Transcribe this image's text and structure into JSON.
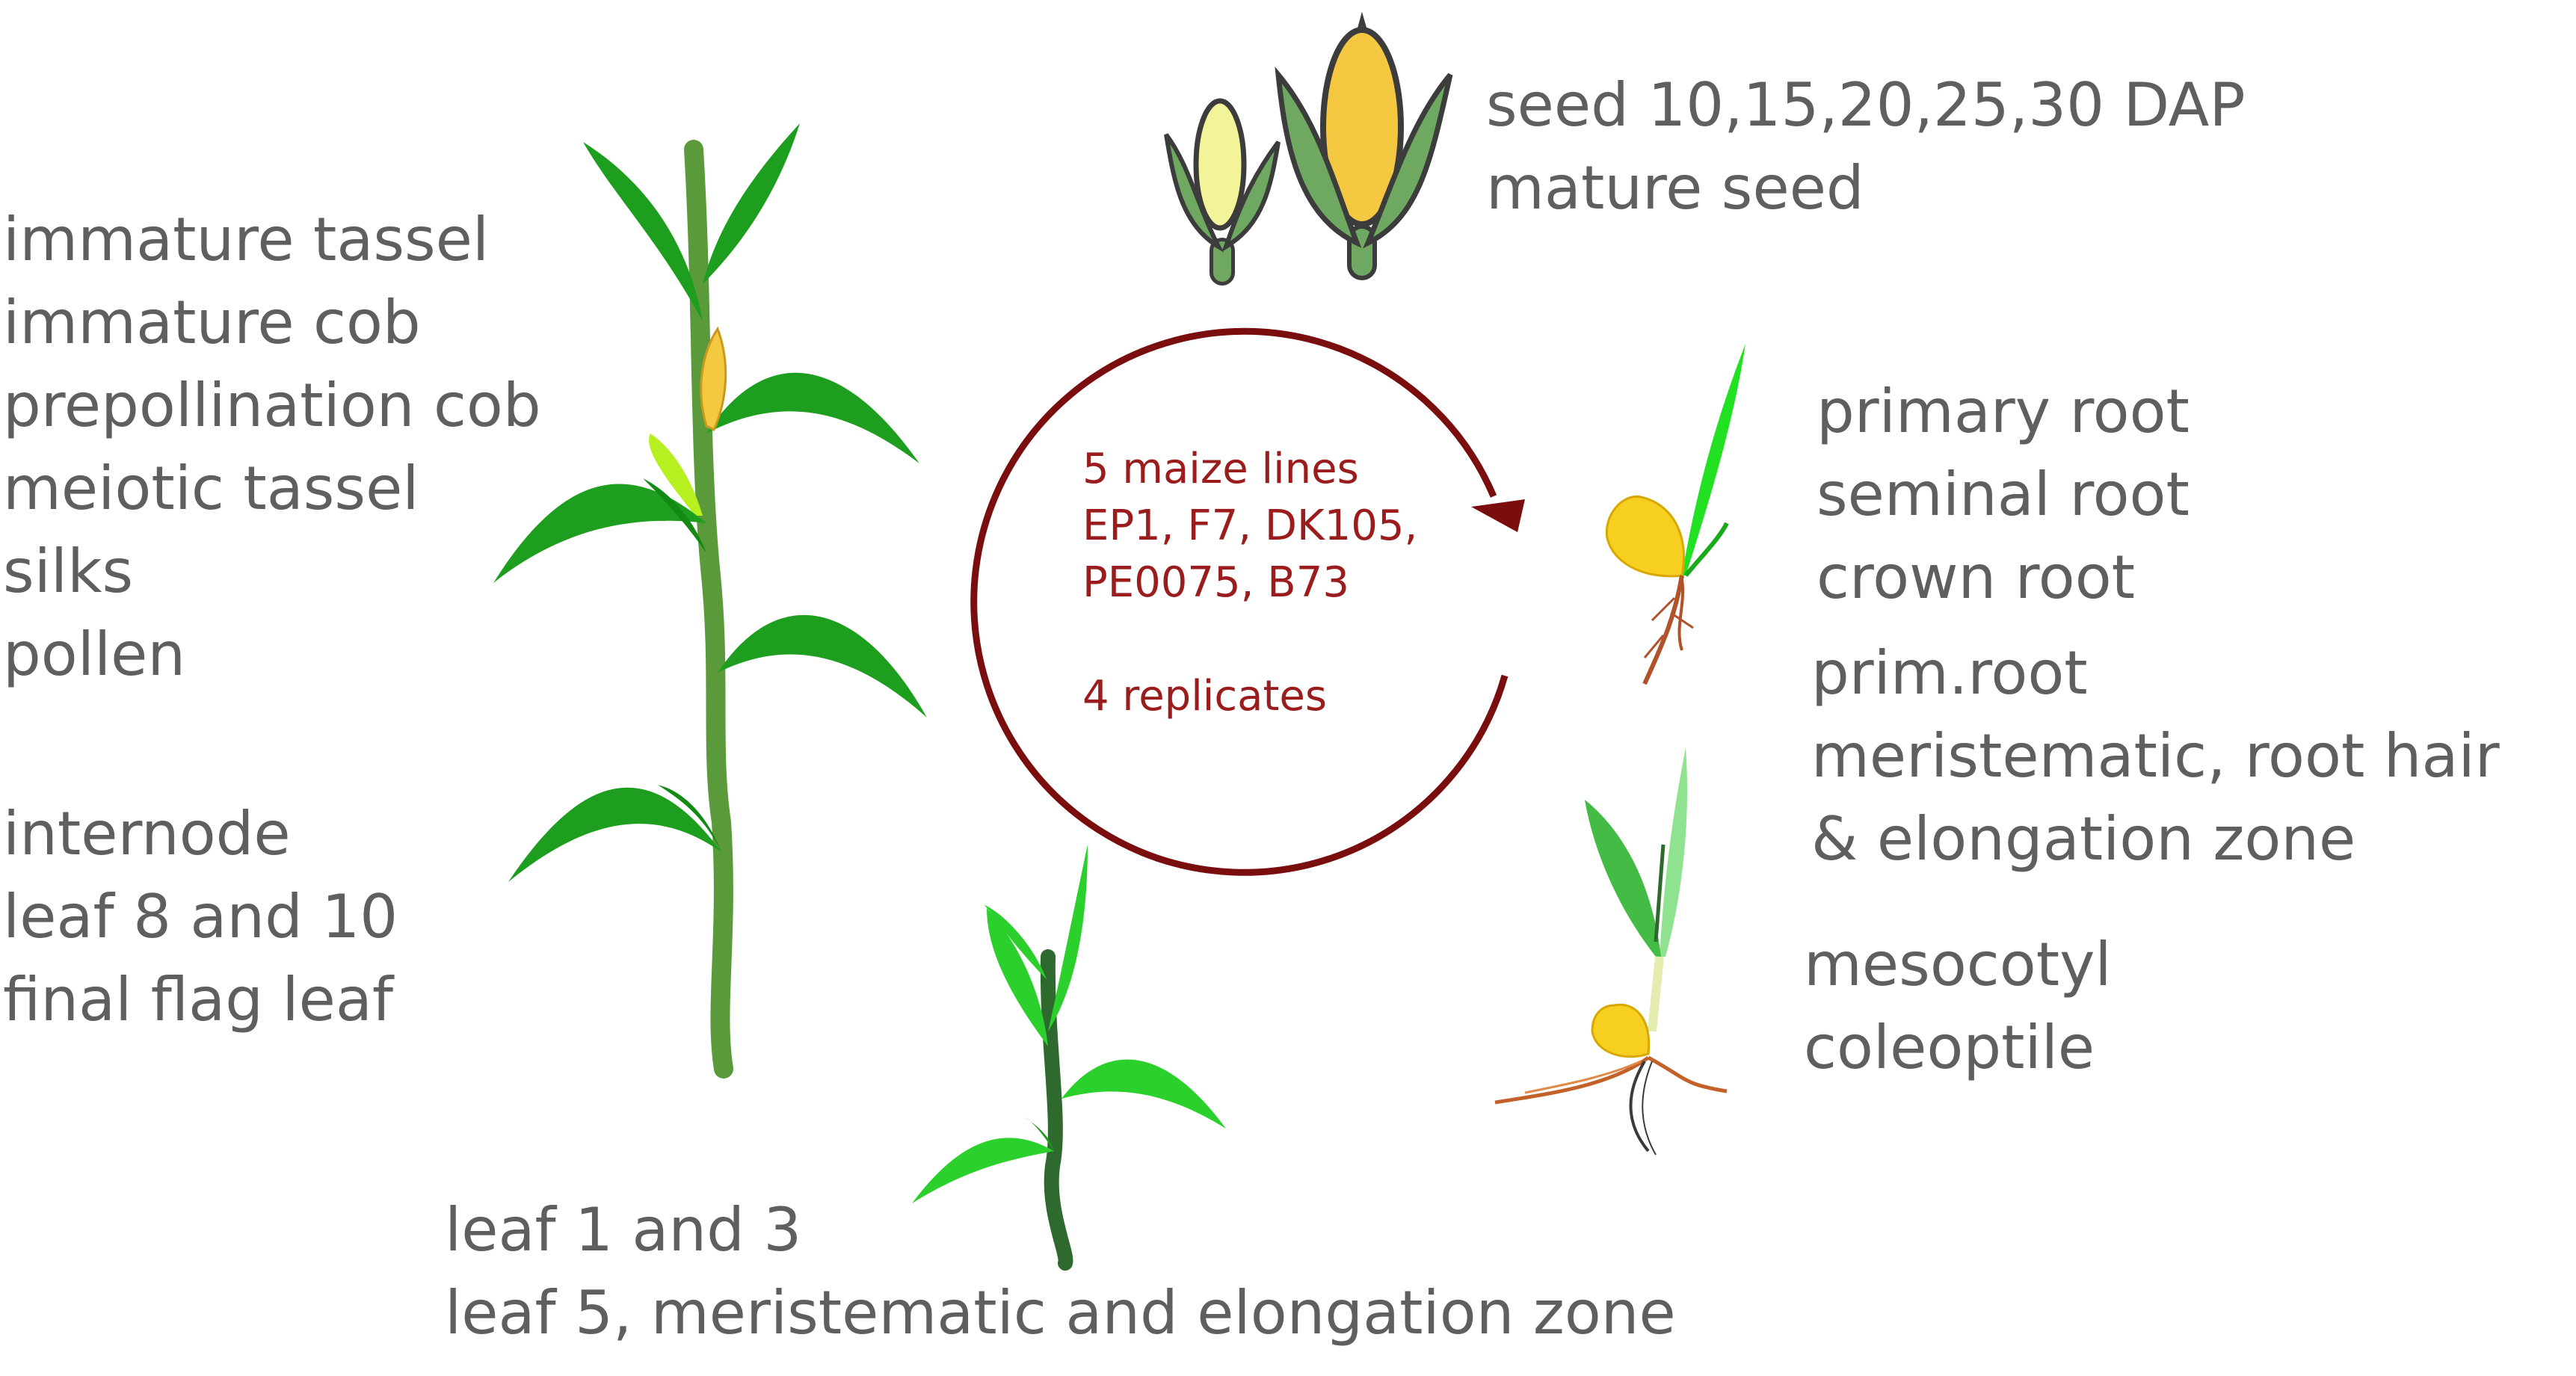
{
  "groups": {
    "adult_plant": [
      "immature tassel",
      "immature cob",
      "prepollination cob",
      "meiotic tassel",
      "silks",
      "pollen"
    ],
    "stem_leaves": [
      "internode",
      "leaf 8 and 10",
      "final flag leaf"
    ],
    "seed": [
      "seed 10,15,20,25,30 DAP",
      "mature seed"
    ],
    "roots": [
      "primary root",
      "seminal root",
      "crown root"
    ],
    "root_zones": [
      "prim.root",
      "meristematic, root hair",
      "& elongation zone"
    ],
    "seedling": [
      "mesocotyl",
      "coleoptile"
    ],
    "young_leaves": [
      "leaf 1 and 3",
      "leaf 5, meristematic and elongation zone"
    ]
  },
  "center": {
    "lines": [
      "5 maize lines",
      "EP1, F7, DK105,",
      "PE0075, B73"
    ],
    "replicates": "4 replicates"
  },
  "colors": {
    "label_text": "#5f5f5f",
    "center_text": "#9b1c1c",
    "cycle_arrow": "#7a0d0d",
    "leaf_green": "#1e9e1e",
    "stalk_green": "#5a9a3a",
    "kernel_yellow": "#f5c842",
    "seed_yellow": "#f7cf20",
    "root_brown": "#b0522a"
  }
}
